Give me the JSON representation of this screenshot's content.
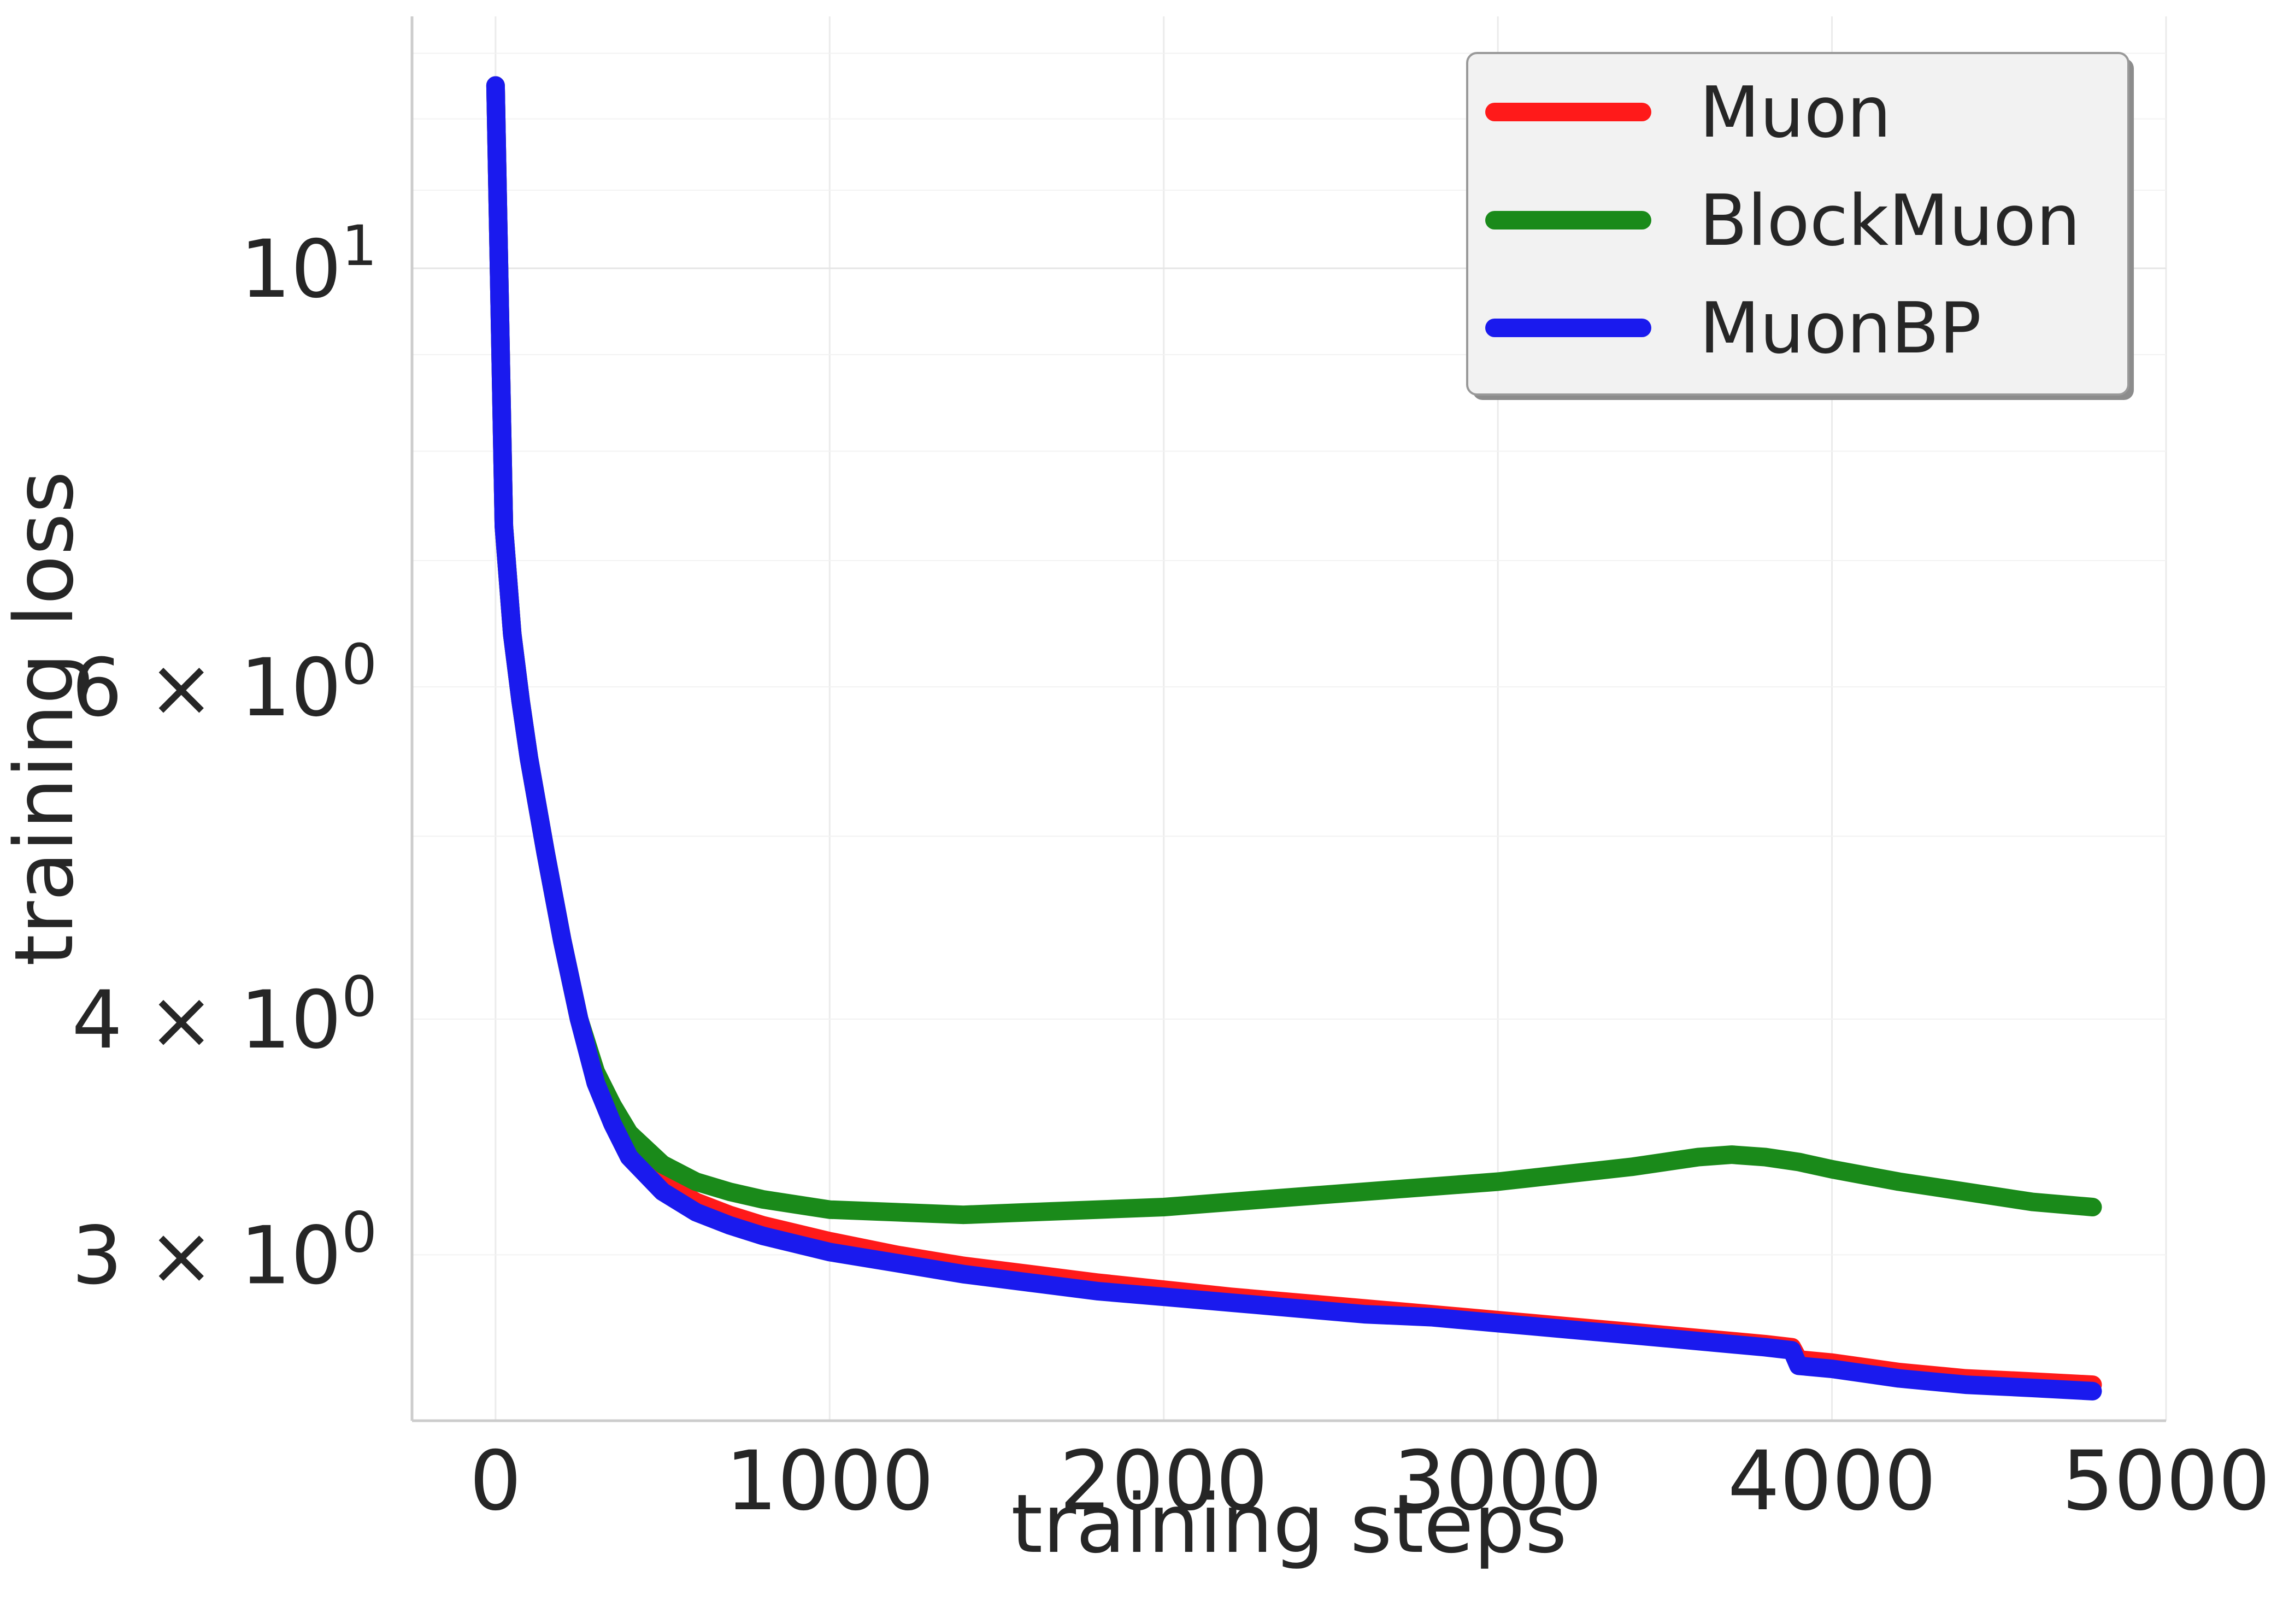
{
  "chart_data": {
    "type": "line",
    "xlabel": "training steps",
    "ylabel": "training loss",
    "x_ticks": [
      0,
      1000,
      2000,
      3000,
      4000,
      5000
    ],
    "xlim": [
      -250,
      5000
    ],
    "y_scale": "log",
    "ylim": [
      2.45,
      13.6
    ],
    "y_ticks": [
      {
        "value": 10,
        "label": "10",
        "sup": "1"
      },
      {
        "value": 6,
        "label": "6 × 10",
        "sup": "0"
      },
      {
        "value": 4,
        "label": "4 × 10",
        "sup": "0"
      },
      {
        "value": 3,
        "label": "3 × 10",
        "sup": "0"
      }
    ],
    "grid": true,
    "legend_position": "top-right",
    "series": [
      {
        "name": "Muon",
        "color": "#ff1a1a",
        "x": [
          0,
          25,
          50,
          75,
          100,
          150,
          200,
          250,
          300,
          350,
          400,
          500,
          600,
          700,
          800,
          900,
          1000,
          1200,
          1400,
          1600,
          1800,
          2000,
          2200,
          2400,
          2600,
          2800,
          3000,
          3200,
          3400,
          3600,
          3800,
          3880,
          3900,
          4000,
          4200,
          4400,
          4600,
          4780
        ],
        "y": [
          12.5,
          7.3,
          6.4,
          5.9,
          5.5,
          4.9,
          4.4,
          4.0,
          3.72,
          3.55,
          3.42,
          3.28,
          3.2,
          3.15,
          3.11,
          3.08,
          3.05,
          3.0,
          2.96,
          2.93,
          2.9,
          2.875,
          2.85,
          2.83,
          2.81,
          2.79,
          2.77,
          2.75,
          2.73,
          2.71,
          2.69,
          2.68,
          2.64,
          2.63,
          2.6,
          2.58,
          2.57,
          2.56
        ]
      },
      {
        "name": "BlockMuon",
        "color": "#1a8a1a",
        "x": [
          0,
          25,
          50,
          75,
          100,
          150,
          200,
          250,
          300,
          350,
          400,
          500,
          600,
          700,
          800,
          900,
          1000,
          1200,
          1400,
          1600,
          1800,
          2000,
          2200,
          2400,
          2600,
          2800,
          3000,
          3200,
          3400,
          3600,
          3700,
          3800,
          3900,
          4000,
          4200,
          4400,
          4600,
          4780
        ],
        "y": [
          12.5,
          7.3,
          6.4,
          5.9,
          5.5,
          4.9,
          4.4,
          4.0,
          3.75,
          3.6,
          3.48,
          3.35,
          3.28,
          3.24,
          3.21,
          3.19,
          3.17,
          3.16,
          3.15,
          3.16,
          3.17,
          3.18,
          3.2,
          3.22,
          3.24,
          3.26,
          3.28,
          3.31,
          3.34,
          3.38,
          3.39,
          3.38,
          3.36,
          3.33,
          3.28,
          3.24,
          3.2,
          3.18
        ]
      },
      {
        "name": "MuonBP",
        "color": "#1a1aee",
        "x": [
          0,
          25,
          50,
          75,
          100,
          150,
          200,
          250,
          300,
          350,
          400,
          500,
          600,
          700,
          800,
          900,
          1000,
          1200,
          1400,
          1600,
          1800,
          2000,
          2200,
          2400,
          2600,
          2800,
          3000,
          3200,
          3400,
          3600,
          3800,
          3880,
          3900,
          4000,
          4200,
          4400,
          4600,
          4780
        ],
        "y": [
          12.5,
          7.3,
          6.4,
          5.9,
          5.5,
          4.9,
          4.4,
          4.0,
          3.7,
          3.52,
          3.38,
          3.24,
          3.16,
          3.11,
          3.07,
          3.04,
          3.01,
          2.97,
          2.93,
          2.9,
          2.87,
          2.85,
          2.83,
          2.81,
          2.79,
          2.78,
          2.76,
          2.74,
          2.72,
          2.7,
          2.68,
          2.67,
          2.62,
          2.61,
          2.58,
          2.56,
          2.55,
          2.54
        ]
      }
    ]
  }
}
